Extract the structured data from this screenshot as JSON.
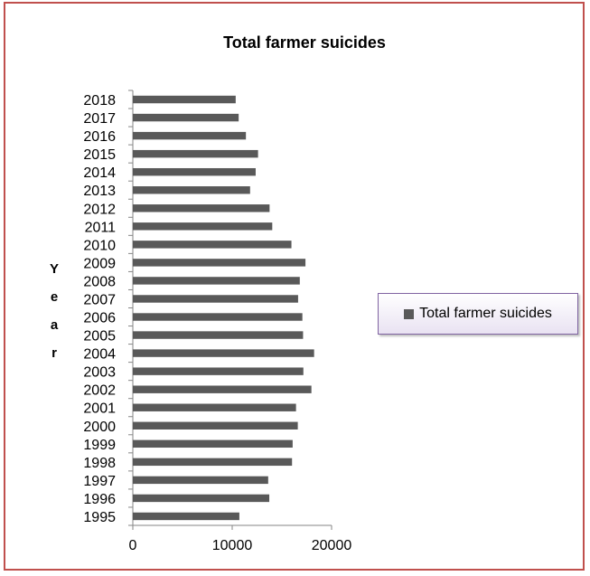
{
  "chart_data": {
    "type": "bar",
    "orientation": "horizontal",
    "title": "Total farmer suicides",
    "xlabel": "",
    "ylabel": "Year",
    "xlim": [
      0,
      20000
    ],
    "x_ticks": [
      0,
      10000,
      20000
    ],
    "x_tick_labels": [
      "0",
      "10000",
      "20000"
    ],
    "grid": false,
    "legend_position": "right",
    "bar_color": "#595959",
    "categories": [
      "1995",
      "1996",
      "1997",
      "1998",
      "1999",
      "2000",
      "2001",
      "2002",
      "2003",
      "2004",
      "2005",
      "2006",
      "2007",
      "2008",
      "2009",
      "2010",
      "2011",
      "2012",
      "2013",
      "2014",
      "2015",
      "2016",
      "2017",
      "2018"
    ],
    "series": [
      {
        "name": "Total farmer suicides",
        "values": [
          10720,
          13730,
          13620,
          16020,
          16080,
          16600,
          16420,
          17970,
          17160,
          18240,
          17130,
          17060,
          16630,
          16800,
          17370,
          15960,
          14030,
          13760,
          11800,
          12360,
          12600,
          11380,
          10650,
          10350
        ]
      }
    ]
  }
}
